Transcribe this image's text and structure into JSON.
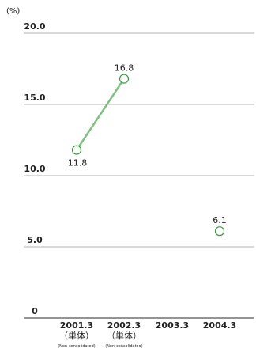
{
  "chart_data": {
    "type": "line",
    "unit_label": "(%)",
    "categories": [
      {
        "label": "2001.3",
        "sub": "（単体）",
        "note": "(Non-consolidated)"
      },
      {
        "label": "2002.3",
        "sub": "（単体）",
        "note": "(Non-consolidated)"
      },
      {
        "label": "2003.3",
        "sub": "",
        "note": ""
      },
      {
        "label": "2004.3",
        "sub": "",
        "note": ""
      }
    ],
    "values": [
      11.8,
      16.8,
      null,
      6.1
    ],
    "value_labels": [
      "11.8",
      "16.8",
      "",
      "6.1"
    ],
    "yticks": [
      "20.0",
      "15.0",
      "10.0",
      "5.0",
      "0"
    ],
    "ytick_values": [
      20,
      15,
      10,
      5,
      0
    ],
    "ylim": [
      0,
      20
    ],
    "grid": true,
    "line_color": "#7fbf7f",
    "marker_color": "#3e9a3e",
    "grid_color": "#b5b5b5"
  }
}
